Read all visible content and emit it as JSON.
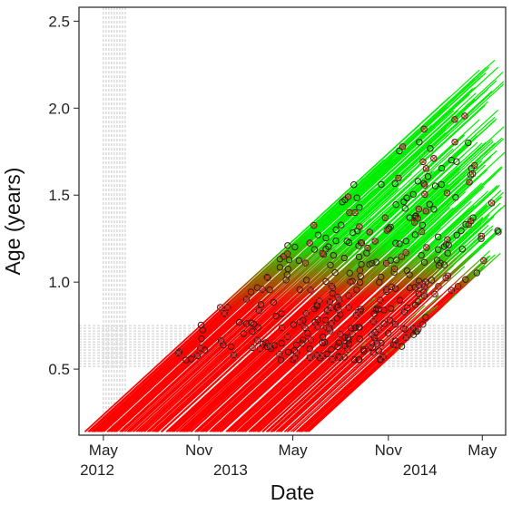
{
  "chart_data": {
    "type": "line",
    "title": "",
    "xlabel": "Date",
    "ylabel": "Age (years)",
    "x_axis_type": "date",
    "xlim": [
      "2012-03-15",
      "2014-06-15"
    ],
    "ylim": [
      0.12,
      2.58
    ],
    "x_ticks": [
      {
        "date": "2012-05-01",
        "month": "May",
        "year": "2012"
      },
      {
        "date": "2012-11-01",
        "month": "Nov",
        "year": ""
      },
      {
        "date": "2013-05-01",
        "month": "May",
        "year": "2013"
      },
      {
        "date": "2013-11-01",
        "month": "Nov",
        "year": ""
      },
      {
        "date": "2014-05-01",
        "month": "May",
        "year": "2014"
      }
    ],
    "y_ticks": [
      0.5,
      1.0,
      1.5,
      2.0,
      2.5
    ],
    "y_tick_labels": [
      "0.5",
      "1.0",
      "1.5",
      "2.0",
      "2.5"
    ],
    "grid": false,
    "shaded_bands": [
      {
        "orientation": "vertical",
        "from": "2012-05-01",
        "to": "2012-06-15",
        "color": "#dcdcdc"
      },
      {
        "orientation": "horizontal",
        "from": 0.5,
        "to": 0.75,
        "color": "#dcdcdc"
      }
    ],
    "lines": {
      "count": 300,
      "start_age": 0.14,
      "birth_range": [
        "2012-03-25",
        "2013-06-01"
      ],
      "slope": "1 year of age per year",
      "end_range": [
        "2013-07-01",
        "2014-06-15"
      ],
      "color_gradient": [
        "#ff0000",
        "#00ee00"
      ],
      "color_switch_age": 1.05
    },
    "markers": {
      "circles": {
        "description": "open circles",
        "age_range": [
          0.55,
          1.85
        ],
        "count": 230
      },
      "crossed_diamonds": {
        "description": "crossed markers",
        "age_range": [
          0.55,
          2.2
        ],
        "count": 130
      }
    },
    "colors": {
      "early": "#ff0000",
      "late": "#00ee00",
      "band": "#dcdcdc",
      "marker": "#3a1a1a",
      "cross_marker": "#cc3333"
    }
  }
}
